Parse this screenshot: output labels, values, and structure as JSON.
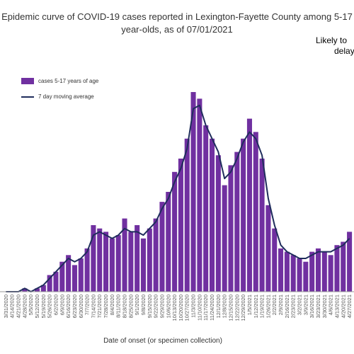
{
  "chart_data": {
    "type": "bar",
    "title_line1": "Epidemic curve of COVID-19 cases reported in Lexington-Fayette County among 5-17",
    "title_line2": "year-olds, as of 07/01/2021",
    "note_line1": "Likely to",
    "note_line2": "delay",
    "xlabel": "Date of onset (or specimen collection)",
    "ylabel": "",
    "series": [
      {
        "name": "cases 5-17 years of age",
        "kind": "bar",
        "color": "#7030a0"
      },
      {
        "name": "7 day moving average",
        "kind": "line",
        "color": "#1f2d5c"
      }
    ],
    "categories": [
      "3/31/2020",
      "4/14/2020",
      "4/21/2020",
      "4/28/2020",
      "5/5/2020",
      "5/12/2020",
      "5/19/2020",
      "5/26/2020",
      "6/2/2020",
      "6/9/2020",
      "6/16/2020",
      "6/23/2020",
      "6/30/2020",
      "7/7/2020",
      "7/14/2020",
      "7/21/2020",
      "7/28/2020",
      "8/4/2020",
      "8/11/2020",
      "8/18/2020",
      "8/25/2020",
      "9/1/2020",
      "9/8/2020",
      "9/15/2020",
      "9/22/2020",
      "9/29/2020",
      "10/6/2020",
      "10/13/2020",
      "10/20/2020",
      "10/27/2020",
      "11/3/2020",
      "11/10/2020",
      "11/17/2020",
      "11/24/2020",
      "12/1/2020",
      "12/8/2020",
      "12/15/2020",
      "12/22/2020",
      "12/29/2020",
      "1/5/2021",
      "1/12/2021",
      "1/19/2021",
      "1/26/2021",
      "2/2/2021",
      "2/9/2021",
      "2/16/2021",
      "2/23/2021",
      "3/2/2021",
      "3/9/2021",
      "3/16/2021",
      "3/23/2021",
      "3/30/2021",
      "4/6/2021",
      "4/13/2021",
      "4/20/2021",
      "4/27/2021"
    ],
    "values": [
      0,
      0,
      0,
      1,
      0,
      1,
      2,
      5,
      6,
      9,
      11,
      8,
      10,
      13,
      20,
      19,
      18,
      16,
      17,
      22,
      18,
      20,
      16,
      19,
      22,
      27,
      30,
      36,
      40,
      46,
      60,
      58,
      50,
      46,
      41,
      32,
      38,
      42,
      46,
      52,
      48,
      40,
      26,
      19,
      13,
      12,
      11,
      10,
      9,
      12,
      13,
      12,
      11,
      14,
      15,
      18
    ],
    "moving_average": [
      0,
      0,
      0,
      1,
      0,
      1,
      2,
      4,
      6,
      8,
      10,
      9,
      10,
      12,
      17,
      18,
      17,
      16,
      17,
      19,
      18,
      18,
      17,
      19,
      21,
      25,
      28,
      33,
      37,
      43,
      55,
      56,
      50,
      46,
      42,
      34,
      36,
      40,
      45,
      48,
      46,
      41,
      28,
      20,
      14,
      12,
      11,
      10,
      10,
      11,
      12,
      12,
      12,
      13,
      14,
      16
    ],
    "legend_position": "top-left",
    "grid": false
  }
}
